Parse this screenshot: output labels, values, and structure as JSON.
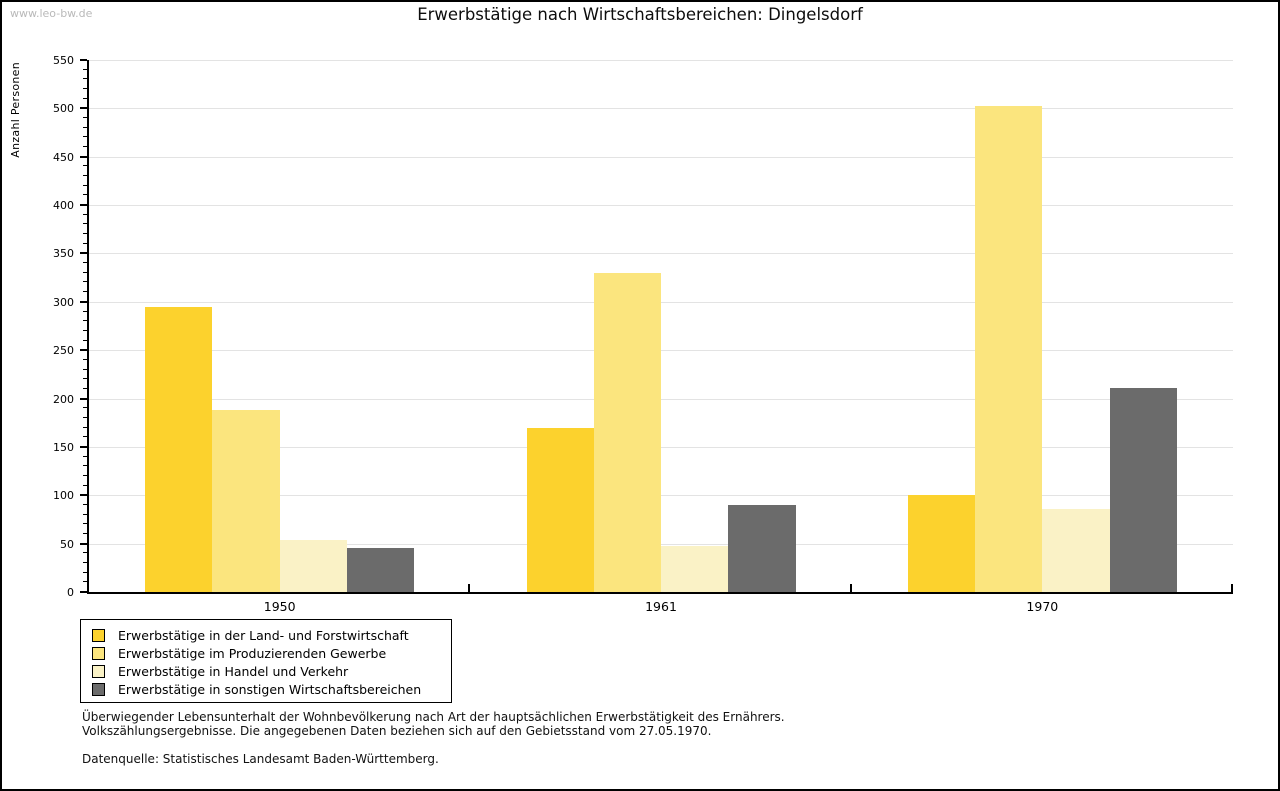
{
  "header": {
    "watermark": "www.leo-bw.de"
  },
  "chart_data": {
    "type": "bar",
    "title": "Erwerbstätige nach Wirtschaftsbereichen: Dingelsdorf",
    "xlabel": "",
    "ylabel": "Anzahl Personen",
    "categories": [
      "1950",
      "1961",
      "1970"
    ],
    "series": [
      {
        "name": "Erwerbstätige in der Land- und Forstwirtschaft",
        "color": "#FCD22D",
        "values": [
          295,
          170,
          100
        ]
      },
      {
        "name": "Erwerbstätige im Produzierenden Gewerbe",
        "color": "#FBE57E",
        "values": [
          188,
          330,
          502
        ]
      },
      {
        "name": "Erwerbstätige in Handel und Verkehr",
        "color": "#FAF2C6",
        "values": [
          54,
          48,
          86
        ]
      },
      {
        "name": "Erwerbstätige in sonstigen Wirtschaftsbereichen",
        "color": "#6B6B6B",
        "values": [
          45,
          90,
          211
        ]
      }
    ],
    "ylim": [
      0,
      550
    ],
    "ytick_step": 50,
    "minor_tick_step": 10,
    "grid": true,
    "legend_position": "bottom-left"
  },
  "footnotes": {
    "line1": "Überwiegender Lebensunterhalt der Wohnbevölkerung nach Art der hauptsächlichen Erwerbstätigkeit des Ernährers.",
    "line2": "Volkszählungsergebnisse. Die angegebenen Daten beziehen sich auf den Gebietsstand vom 27.05.1970.",
    "source": "Datenquelle: Statistisches Landesamt Baden-Württemberg."
  },
  "colors": {
    "grid": "#E3E3E3",
    "axis": "#000000",
    "watermark": "#B9B9B9"
  }
}
